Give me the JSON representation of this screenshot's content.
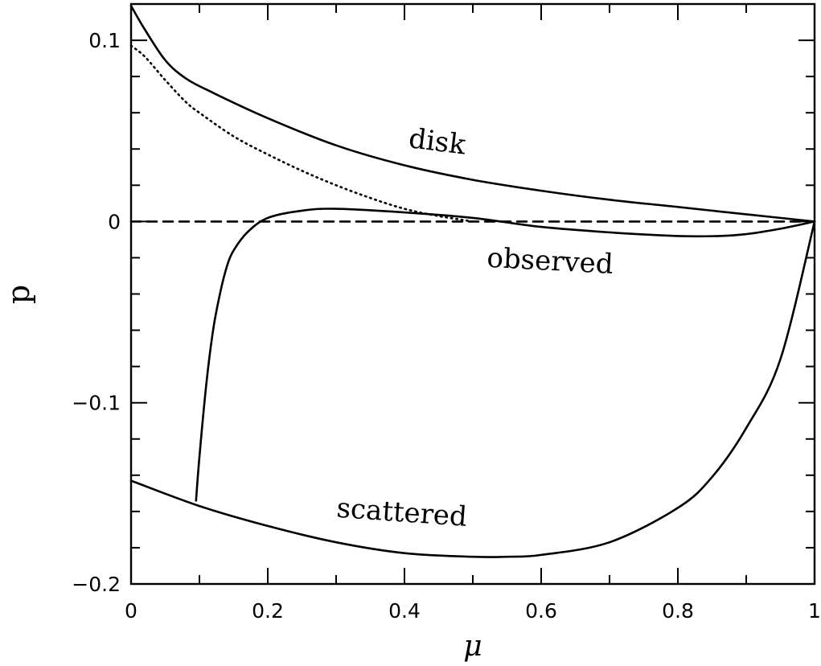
{
  "chart_data": {
    "type": "line",
    "xlabel": "μ",
    "ylabel": "p",
    "xlim": [
      0,
      1
    ],
    "ylim": [
      -0.2,
      0.12
    ],
    "grid": false,
    "x_ticks": [
      0,
      0.2,
      0.4,
      0.6,
      0.8,
      1
    ],
    "x_tick_labels": [
      "0",
      "0.2",
      "0.4",
      "0.6",
      "0.8",
      "1"
    ],
    "y_ticks": [
      -0.2,
      -0.1,
      0,
      0.1
    ],
    "y_tick_labels": [
      "−0.2",
      "−0.1",
      "0",
      "0.1"
    ],
    "series": [
      {
        "name": "disk",
        "style": "solid",
        "x": [
          0,
          0.02,
          0.05,
          0.08,
          0.12,
          0.2,
          0.3,
          0.4,
          0.5,
          0.6,
          0.7,
          0.8,
          0.9,
          1.0
        ],
        "y": [
          0.119,
          0.106,
          0.089,
          0.079,
          0.071,
          0.057,
          0.042,
          0.031,
          0.023,
          0.017,
          0.012,
          0.008,
          0.004,
          0.0
        ]
      },
      {
        "name": "observed",
        "style": "solid",
        "x": [
          0.095,
          0.1,
          0.11,
          0.12,
          0.13,
          0.14,
          0.15,
          0.17,
          0.2,
          0.25,
          0.3,
          0.4,
          0.5,
          0.6,
          0.7,
          0.8,
          0.86,
          0.9,
          0.95,
          1.0
        ],
        "y": [
          -0.154,
          -0.13,
          -0.09,
          -0.06,
          -0.04,
          -0.025,
          -0.016,
          -0.006,
          0.002,
          0.006,
          0.007,
          0.005,
          0.002,
          -0.003,
          -0.006,
          -0.008,
          -0.008,
          -0.007,
          -0.004,
          0.0
        ]
      },
      {
        "name": "scattered",
        "style": "solid",
        "x": [
          0,
          0.1,
          0.2,
          0.3,
          0.4,
          0.5,
          0.55,
          0.6,
          0.7,
          0.8,
          0.85,
          0.9,
          0.95,
          1.0
        ],
        "y": [
          -0.143,
          -0.157,
          -0.168,
          -0.177,
          -0.183,
          -0.185,
          -0.185,
          -0.184,
          -0.177,
          -0.158,
          -0.141,
          -0.114,
          -0.076,
          0.0
        ]
      },
      {
        "name": "",
        "style": "dotted",
        "x": [
          0,
          0.02,
          0.05,
          0.08,
          0.1,
          0.15,
          0.2,
          0.25,
          0.3,
          0.35,
          0.4,
          0.45,
          0.5
        ],
        "y": [
          0.097,
          0.091,
          0.078,
          0.066,
          0.06,
          0.047,
          0.037,
          0.028,
          0.02,
          0.013,
          0.007,
          0.003,
          0.0
        ]
      },
      {
        "name": "",
        "style": "dashed",
        "x": [
          0,
          1
        ],
        "y": [
          0,
          0
        ]
      }
    ],
    "annotations": [
      {
        "text": "disk",
        "x": 0.405,
        "y": 0.041,
        "rotate": 7
      },
      {
        "text": "observed",
        "x": 0.52,
        "y": -0.025,
        "rotate": 3
      },
      {
        "text": "scattered",
        "x": 0.3,
        "y": -0.163,
        "rotate": 4
      }
    ]
  }
}
